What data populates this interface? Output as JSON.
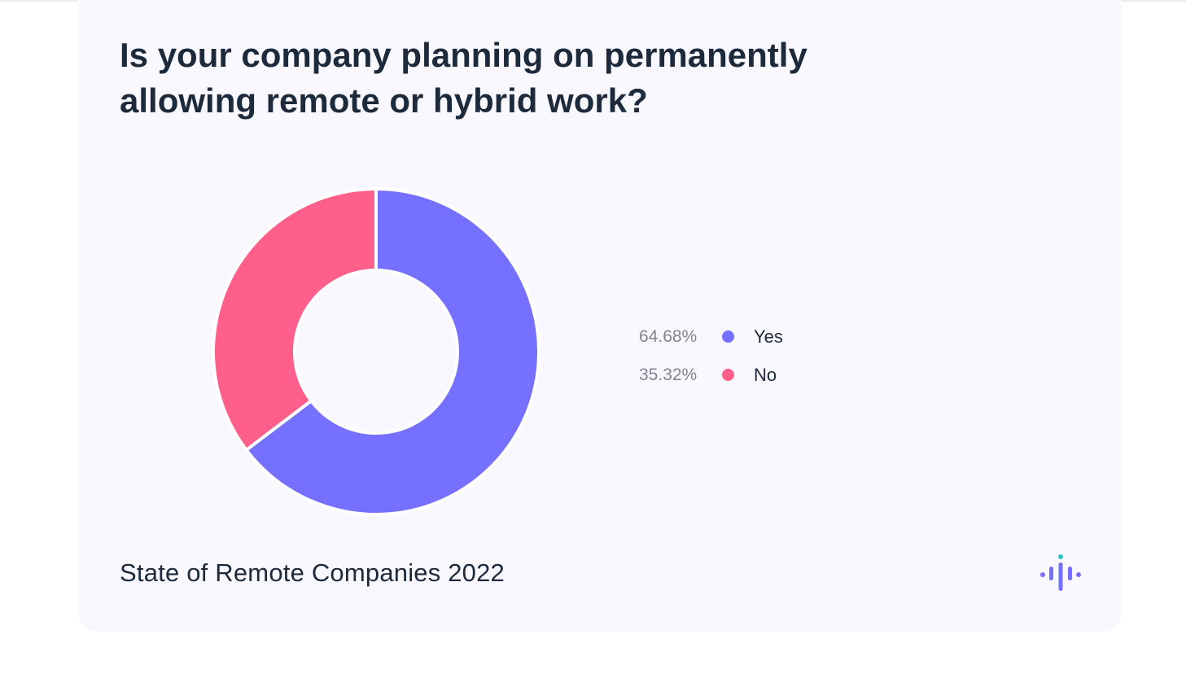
{
  "chart_data": {
    "type": "pie",
    "title": "Is your company planning on permanently allowing remote or hybrid work?",
    "categories": [
      "Yes",
      "No"
    ],
    "values": [
      64.68,
      35.32
    ],
    "value_labels": [
      "64.68%",
      "35.32%"
    ],
    "colors": [
      "#7570ff",
      "#ff5f8a"
    ],
    "legend_placement": "right"
  },
  "footer": {
    "source": "State of Remote Companies 2022",
    "logo_icon": "audio-wave-logo-icon"
  },
  "colors": {
    "card_background": "#f9f8fe",
    "text": "#1c2a3c",
    "muted_text": "#818494",
    "logo_accent": "#2cc5c9"
  }
}
